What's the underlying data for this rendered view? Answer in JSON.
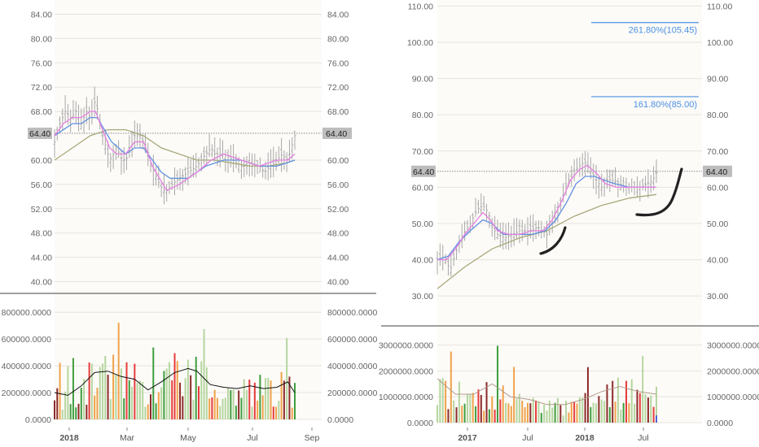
{
  "colors": {
    "background": "#fdfbf8",
    "grid": "#e6e3df",
    "candle": "#a8a8a8",
    "ma_fast": "#e67ee0",
    "ma_mid": "#5f8fe0",
    "ma_slow": "#a9a87a",
    "price_line": "#8a8a8a",
    "price_badge": "#bdbdbd",
    "fib_line": "#4a90e2",
    "vol_up": "#3f9e3f",
    "vol_up_light": "#b5d6a0",
    "vol_down": "#8b2a2a",
    "vol_red": "#e63c3c",
    "vol_orange": "#f0a24a",
    "vol_blue": "#4d62d9",
    "hand_curve": "#222222"
  },
  "chart_data": [
    {
      "type": "candlestick",
      "panel": "left",
      "price_axis": {
        "ticks": [
          "84.00",
          "80.00",
          "76.00",
          "72.00",
          "68.00",
          "64.40",
          "60.00",
          "56.00",
          "52.00",
          "48.00",
          "44.00",
          "40.00"
        ],
        "ylim": [
          39,
          85
        ]
      },
      "current_price": 64.4,
      "current_price_label": "64.40",
      "x_labels": [
        "2018",
        "Mar",
        "May",
        "Jul",
        "Sep"
      ],
      "close_path": [
        [
          0,
          63
        ],
        [
          6,
          66
        ],
        [
          12,
          68
        ],
        [
          18,
          67
        ],
        [
          24,
          68
        ],
        [
          30,
          66
        ],
        [
          36,
          68
        ],
        [
          40,
          67
        ],
        [
          46,
          70
        ],
        [
          50,
          67
        ],
        [
          54,
          64
        ],
        [
          58,
          62
        ],
        [
          62,
          60
        ],
        [
          66,
          61
        ],
        [
          70,
          62
        ],
        [
          76,
          60
        ],
        [
          80,
          60
        ],
        [
          86,
          62
        ],
        [
          90,
          64
        ],
        [
          96,
          64
        ],
        [
          100,
          63
        ],
        [
          104,
          62
        ],
        [
          108,
          59
        ],
        [
          112,
          58
        ],
        [
          118,
          56
        ],
        [
          122,
          55
        ],
        [
          126,
          55
        ],
        [
          132,
          56
        ],
        [
          140,
          57
        ],
        [
          150,
          58
        ],
        [
          160,
          59
        ],
        [
          170,
          61
        ],
        [
          176,
          62
        ],
        [
          180,
          61
        ],
        [
          190,
          61
        ],
        [
          200,
          60
        ],
        [
          210,
          59
        ],
        [
          220,
          59
        ],
        [
          230,
          59
        ],
        [
          236,
          58
        ],
        [
          242,
          59
        ],
        [
          250,
          60
        ],
        [
          256,
          61
        ],
        [
          262,
          60
        ],
        [
          266,
          62
        ],
        [
          270,
          64
        ]
      ],
      "ma_fast_path": [
        [
          0,
          64
        ],
        [
          10,
          66
        ],
        [
          20,
          67
        ],
        [
          30,
          67
        ],
        [
          40,
          68
        ],
        [
          46,
          68
        ],
        [
          54,
          65
        ],
        [
          62,
          62
        ],
        [
          70,
          61
        ],
        [
          80,
          61
        ],
        [
          90,
          63
        ],
        [
          100,
          63
        ],
        [
          110,
          59
        ],
        [
          118,
          57
        ],
        [
          126,
          55
        ],
        [
          140,
          56
        ],
        [
          160,
          58
        ],
        [
          176,
          60
        ],
        [
          190,
          61
        ],
        [
          210,
          60
        ],
        [
          230,
          59
        ],
        [
          250,
          60
        ],
        [
          262,
          60
        ],
        [
          270,
          61
        ]
      ],
      "ma_mid_path": [
        [
          0,
          64
        ],
        [
          10,
          65
        ],
        [
          20,
          66
        ],
        [
          30,
          66
        ],
        [
          40,
          67
        ],
        [
          48,
          67
        ],
        [
          56,
          65
        ],
        [
          64,
          63
        ],
        [
          72,
          62
        ],
        [
          80,
          61
        ],
        [
          90,
          62
        ],
        [
          100,
          62
        ],
        [
          110,
          60
        ],
        [
          120,
          58
        ],
        [
          130,
          57
        ],
        [
          150,
          57
        ],
        [
          170,
          59
        ],
        [
          190,
          60
        ],
        [
          210,
          60
        ],
        [
          230,
          59
        ],
        [
          250,
          59
        ],
        [
          270,
          60
        ]
      ],
      "ma_slow_path": [
        [
          0,
          60
        ],
        [
          20,
          62
        ],
        [
          40,
          64
        ],
        [
          60,
          65
        ],
        [
          80,
          65
        ],
        [
          100,
          64
        ],
        [
          120,
          62
        ],
        [
          140,
          61
        ],
        [
          160,
          60
        ],
        [
          180,
          60
        ],
        [
          200,
          59.5
        ],
        [
          220,
          59
        ],
        [
          240,
          59
        ],
        [
          260,
          59.5
        ],
        [
          270,
          60
        ]
      ],
      "volume": {
        "ticks": [
          "800000.0000",
          "600000.0000",
          "400000.0000",
          "200000.0000",
          "0.0000"
        ],
        "ylim": [
          0,
          850000
        ]
      },
      "volume_ma_path": [
        [
          0,
          200000
        ],
        [
          15,
          180000
        ],
        [
          30,
          250000
        ],
        [
          45,
          350000
        ],
        [
          60,
          360000
        ],
        [
          75,
          320000
        ],
        [
          90,
          300000
        ],
        [
          105,
          220000
        ],
        [
          120,
          280000
        ],
        [
          135,
          350000
        ],
        [
          150,
          380000
        ],
        [
          160,
          360000
        ],
        [
          175,
          260000
        ],
        [
          190,
          240000
        ],
        [
          205,
          230000
        ],
        [
          220,
          250000
        ],
        [
          235,
          230000
        ],
        [
          250,
          240000
        ],
        [
          262,
          280000
        ],
        [
          270,
          200000
        ]
      ]
    },
    {
      "type": "candlestick",
      "panel": "right",
      "price_axis": {
        "ticks": [
          "110.00",
          "100.00",
          "90.00",
          "80.00",
          "70.00",
          "64.40",
          "60.00",
          "50.00",
          "40.00",
          "30.00"
        ],
        "ylim": [
          26,
          111
        ]
      },
      "current_price": 64.4,
      "current_price_label": "64.40",
      "x_labels": [
        "2017",
        "Jul",
        "2018",
        "Jul"
      ],
      "fibonacci": [
        {
          "level": 105.45,
          "label": "261.80%(105.45)"
        },
        {
          "level": 85.0,
          "label": "161.80%(85.00)"
        }
      ],
      "close_path": [
        [
          0,
          40
        ],
        [
          8,
          41
        ],
        [
          14,
          37
        ],
        [
          20,
          42
        ],
        [
          28,
          47
        ],
        [
          36,
          50
        ],
        [
          44,
          54
        ],
        [
          50,
          55
        ],
        [
          56,
          53
        ],
        [
          60,
          49
        ],
        [
          66,
          47
        ],
        [
          74,
          46
        ],
        [
          82,
          47
        ],
        [
          90,
          48
        ],
        [
          100,
          48
        ],
        [
          110,
          49
        ],
        [
          120,
          47
        ],
        [
          126,
          50
        ],
        [
          134,
          54
        ],
        [
          140,
          60
        ],
        [
          148,
          64
        ],
        [
          156,
          66
        ],
        [
          162,
          67
        ],
        [
          168,
          65
        ],
        [
          174,
          62
        ],
        [
          180,
          60
        ],
        [
          186,
          62
        ],
        [
          192,
          62
        ],
        [
          200,
          61
        ],
        [
          206,
          60
        ],
        [
          214,
          60
        ],
        [
          222,
          60
        ],
        [
          230,
          61
        ],
        [
          236,
          62
        ],
        [
          240,
          64
        ]
      ],
      "ma_fast_path": [
        [
          0,
          40
        ],
        [
          10,
          40
        ],
        [
          20,
          43
        ],
        [
          30,
          47
        ],
        [
          40,
          50
        ],
        [
          50,
          53
        ],
        [
          58,
          51
        ],
        [
          66,
          48
        ],
        [
          78,
          47
        ],
        [
          90,
          47
        ],
        [
          104,
          48
        ],
        [
          116,
          48
        ],
        [
          126,
          51
        ],
        [
          136,
          56
        ],
        [
          146,
          62
        ],
        [
          156,
          65
        ],
        [
          164,
          66
        ],
        [
          174,
          64
        ],
        [
          184,
          61
        ],
        [
          196,
          60
        ],
        [
          210,
          60
        ],
        [
          224,
          60
        ],
        [
          240,
          60
        ]
      ],
      "ma_mid_path": [
        [
          0,
          40
        ],
        [
          12,
          41
        ],
        [
          24,
          45
        ],
        [
          36,
          48
        ],
        [
          50,
          51
        ],
        [
          60,
          50
        ],
        [
          72,
          47
        ],
        [
          88,
          47
        ],
        [
          104,
          47
        ],
        [
          118,
          48
        ],
        [
          130,
          51
        ],
        [
          142,
          56
        ],
        [
          152,
          61
        ],
        [
          162,
          63
        ],
        [
          172,
          63
        ],
        [
          182,
          62
        ],
        [
          194,
          61
        ],
        [
          210,
          60
        ],
        [
          225,
          60
        ],
        [
          240,
          60
        ]
      ],
      "ma_slow_path": [
        [
          0,
          32
        ],
        [
          30,
          38
        ],
        [
          60,
          43
        ],
        [
          90,
          46
        ],
        [
          120,
          48
        ],
        [
          150,
          52
        ],
        [
          180,
          55
        ],
        [
          210,
          57
        ],
        [
          240,
          58
        ]
      ],
      "volume": {
        "ticks": [
          "3000000.0000",
          "2000000.0000",
          "1000000.0000",
          "0.0000"
        ],
        "ylim": [
          0,
          3300000
        ]
      },
      "volume_ma_path": [
        [
          0,
          1700000
        ],
        [
          20,
          1100000
        ],
        [
          40,
          1100000
        ],
        [
          60,
          1500000
        ],
        [
          80,
          1000000
        ],
        [
          100,
          900000
        ],
        [
          120,
          700000
        ],
        [
          140,
          700000
        ],
        [
          160,
          900000
        ],
        [
          180,
          1200000
        ],
        [
          200,
          1400000
        ],
        [
          220,
          1200000
        ],
        [
          240,
          1100000
        ]
      ]
    }
  ]
}
